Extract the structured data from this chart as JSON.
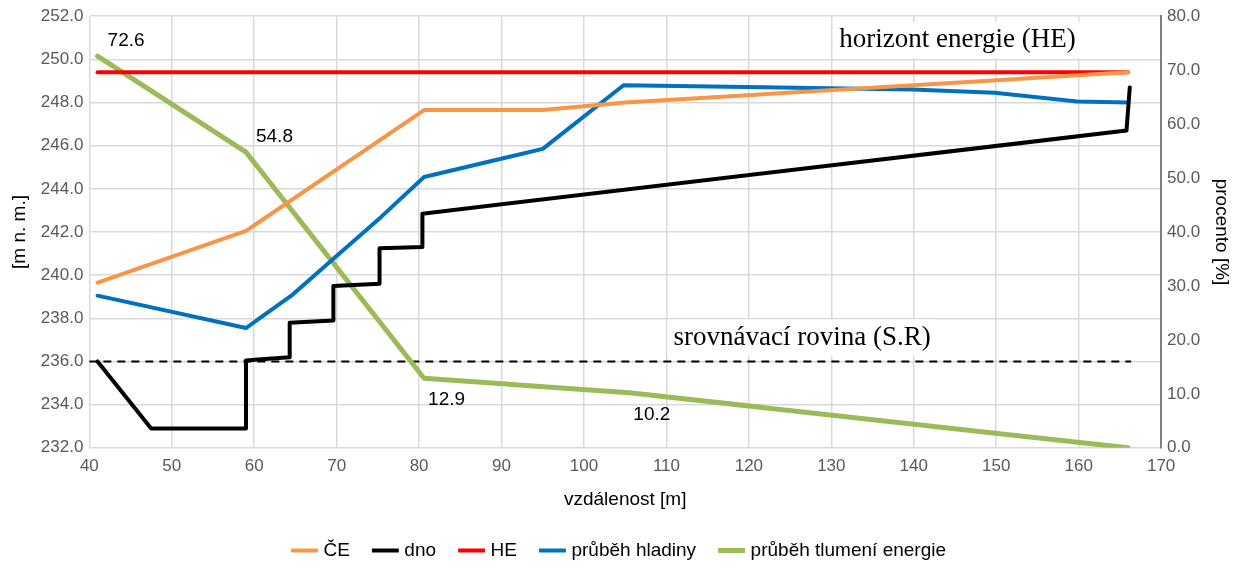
{
  "chart_data": {
    "type": "line",
    "xlabel": "vzdálenost [m]",
    "ylabel": "[m n. m.]",
    "y2label": "procento [%]",
    "xlim": [
      40,
      170
    ],
    "xticks": [
      40,
      50,
      60,
      70,
      80,
      90,
      100,
      110,
      120,
      130,
      140,
      150,
      160,
      170
    ],
    "ylim": [
      232,
      252
    ],
    "yticks": [
      {
        "value": 232,
        "label": "232.0"
      },
      {
        "value": 234,
        "label": "234.0"
      },
      {
        "value": 236,
        "label": "236.0"
      },
      {
        "value": 238,
        "label": "238.0"
      },
      {
        "value": 240,
        "label": "240.0"
      },
      {
        "value": 242,
        "label": "242.0"
      },
      {
        "value": 244,
        "label": "244.0"
      },
      {
        "value": 246,
        "label": "246.0"
      },
      {
        "value": 248,
        "label": "248.0"
      },
      {
        "value": 250,
        "label": "250.0"
      },
      {
        "value": 252,
        "label": "252.0"
      }
    ],
    "y2lim": [
      0,
      80
    ],
    "y2ticks": [
      {
        "value": 0,
        "label": "0.0"
      },
      {
        "value": 10,
        "label": "10.0"
      },
      {
        "value": 20,
        "label": "20.0"
      },
      {
        "value": 30,
        "label": "30.0"
      },
      {
        "value": 40,
        "label": "40.0"
      },
      {
        "value": 50,
        "label": "50.0"
      },
      {
        "value": 60,
        "label": "60.0"
      },
      {
        "value": 70,
        "label": "70.0"
      },
      {
        "value": 80,
        "label": "80.0"
      }
    ],
    "grid": true,
    "legend": "bottom",
    "marker": "none",
    "line_style": "solid",
    "series": [
      {
        "name": "ČE",
        "color": "#f79646",
        "x": [
          41,
          59,
          80.6,
          95,
          105,
          166
        ],
        "values": [
          239.65,
          242.05,
          247.65,
          247.65,
          248.0,
          249.4
        ]
      },
      {
        "name": "dno",
        "color": "#000000",
        "x": [
          41,
          47.5,
          59,
          59,
          64.3,
          64.3,
          69.6,
          69.6,
          75.2,
          75.2,
          80.4,
          80.4,
          165.8,
          166.2
        ],
        "values": [
          236.0,
          232.9,
          232.9,
          236.05,
          236.2,
          237.8,
          237.9,
          239.5,
          239.6,
          241.25,
          241.3,
          242.85,
          246.7,
          248.7
        ]
      },
      {
        "name": "HE",
        "color": "#ff0000",
        "x": [
          41,
          166
        ],
        "values": [
          249.4,
          249.4
        ]
      },
      {
        "name": "průběh hladiny",
        "color": "#0070c0",
        "x": [
          41,
          59,
          64.5,
          75.4,
          80.6,
          95,
          104.8,
          139.8,
          149.8,
          159.8,
          166
        ],
        "values": [
          239.05,
          237.55,
          239.05,
          242.7,
          244.55,
          245.85,
          248.8,
          248.6,
          248.45,
          248.05,
          248.0
        ]
      },
      {
        "name": "průběh tlumení energie",
        "color": "#9bbb59",
        "axis": "y2",
        "x": [
          41,
          59,
          80.6,
          105.5,
          166
        ],
        "values": [
          72.6,
          54.8,
          12.9,
          10.2,
          0.0
        ],
        "value_labels": [
          "72.6",
          "54.8",
          "12.9",
          "10.2",
          null
        ]
      }
    ],
    "ref_lines": [
      {
        "axis": "y",
        "value": 236,
        "label": "srovnávací rovina (S.R)",
        "color": "#000000",
        "line_style": "dashed"
      }
    ],
    "annotations": [
      "horizont energie (HE)"
    ]
  }
}
